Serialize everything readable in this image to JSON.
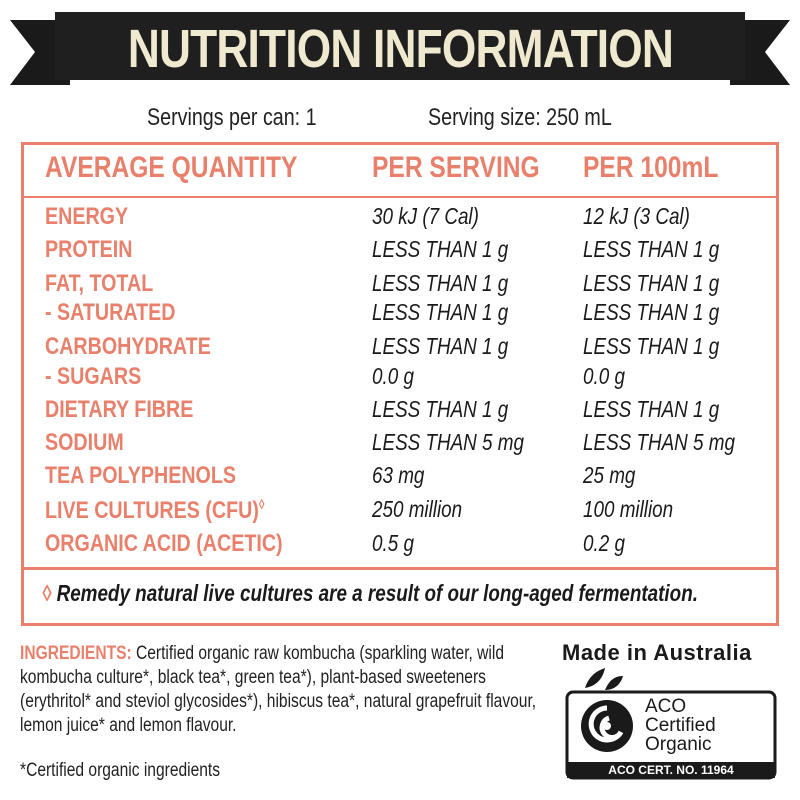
{
  "header": {
    "title": "NUTRITION INFORMATION"
  },
  "servings": {
    "per_can": "Servings per can: 1",
    "size": "Serving size: 250 mL"
  },
  "table": {
    "columns": [
      "AVERAGE QUANTITY",
      "PER SERVING",
      "PER 100mL"
    ],
    "rows": [
      [
        "ENERGY",
        "30 kJ (7 Cal)",
        "12 kJ (3 Cal)"
      ],
      [
        "PROTEIN",
        "LESS THAN 1 g",
        "LESS THAN 1 g"
      ],
      [
        "FAT, TOTAL",
        "LESS THAN 1 g",
        "LESS THAN 1 g"
      ],
      [
        "- SATURATED",
        "LESS THAN 1 g",
        "LESS THAN 1 g"
      ],
      [
        "CARBOHYDRATE",
        "LESS THAN 1 g",
        "LESS THAN 1 g"
      ],
      [
        "- SUGARS",
        "0.0 g",
        "0.0 g"
      ],
      [
        "DIETARY FIBRE",
        "LESS THAN 1 g",
        "LESS THAN 1 g"
      ],
      [
        "SODIUM",
        "LESS THAN 5 mg",
        "LESS THAN 5 mg"
      ],
      [
        "TEA POLYPHENOLS",
        "63 mg",
        "25 mg"
      ],
      [
        "LIVE CULTURES (CFU)",
        "250 million",
        "100 million"
      ],
      [
        "ORGANIC ACID (ACETIC)",
        "0.5 g",
        "0.2 g"
      ]
    ],
    "marked_row": 9
  },
  "note": {
    "symbol": "◊",
    "text": "Remedy natural live cultures are a result of our long-aged fermentation."
  },
  "ingredients": {
    "label": "INGREDIENTS:",
    "text": "Certified organic raw kombucha (sparkling water, wild kombucha culture*, black tea*, green tea*), plant-based sweeteners (erythritol* and steviol glycosides*), hibiscus tea*, natural grapefruit flavour, lemon juice* and lemon flavour.",
    "footnote": "*Certified organic ingredients"
  },
  "made_in": "Made in Australia",
  "logo": {
    "lines": [
      "ACO",
      "Certified",
      "Organic"
    ],
    "cert": "ACO CERT. NO. 11964"
  }
}
